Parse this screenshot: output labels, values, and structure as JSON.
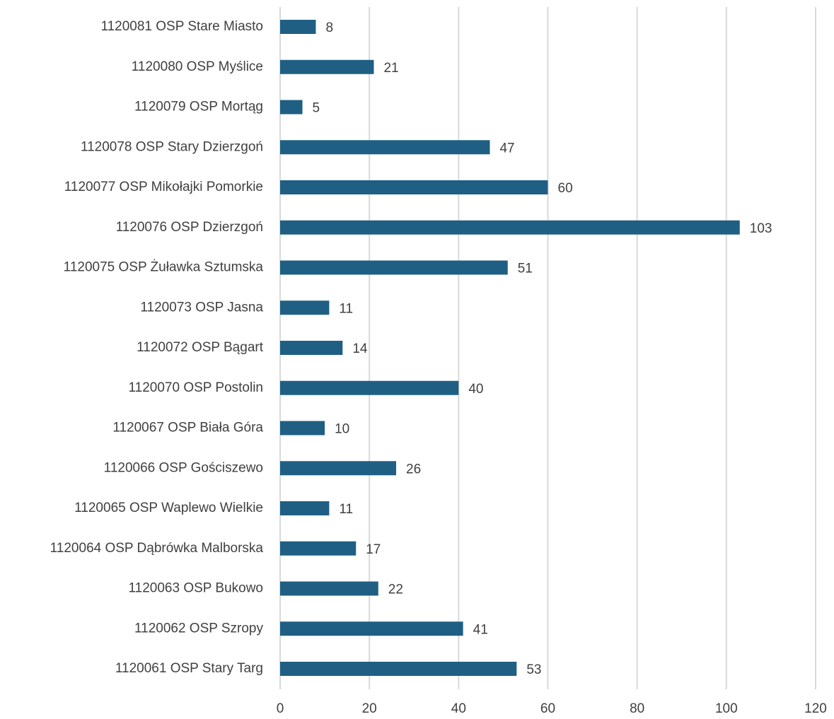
{
  "chart_data": {
    "type": "bar",
    "orientation": "horizontal",
    "categories": [
      "1120081 OSP Stare Miasto",
      "1120080 OSP Myślice",
      "1120079 OSP Mortąg",
      "1120078 OSP Stary Dzierzgoń",
      "1120077 OSP Mikołajki Pomorkie",
      "1120076 OSP Dzierzgoń",
      "1120075 OSP Żuławka Sztumska",
      "1120073 OSP Jasna",
      "1120072 OSP Bągart",
      "1120070 OSP Postolin",
      "1120067 OSP Biała Góra",
      "1120066 OSP Gościszewo",
      "1120065 OSP Waplewo Wielkie",
      "1120064 OSP Dąbrówka Malborska",
      "1120063 OSP Bukowo",
      "1120062 OSP Szropy",
      "1120061 OSP Stary Targ"
    ],
    "values": [
      8,
      21,
      5,
      47,
      60,
      103,
      51,
      11,
      14,
      40,
      10,
      26,
      11,
      17,
      22,
      41,
      53
    ],
    "color": "#1f5f83",
    "xlim": [
      0,
      120
    ],
    "xticks": [
      0,
      20,
      40,
      60,
      80,
      100,
      120
    ],
    "grid": true
  }
}
